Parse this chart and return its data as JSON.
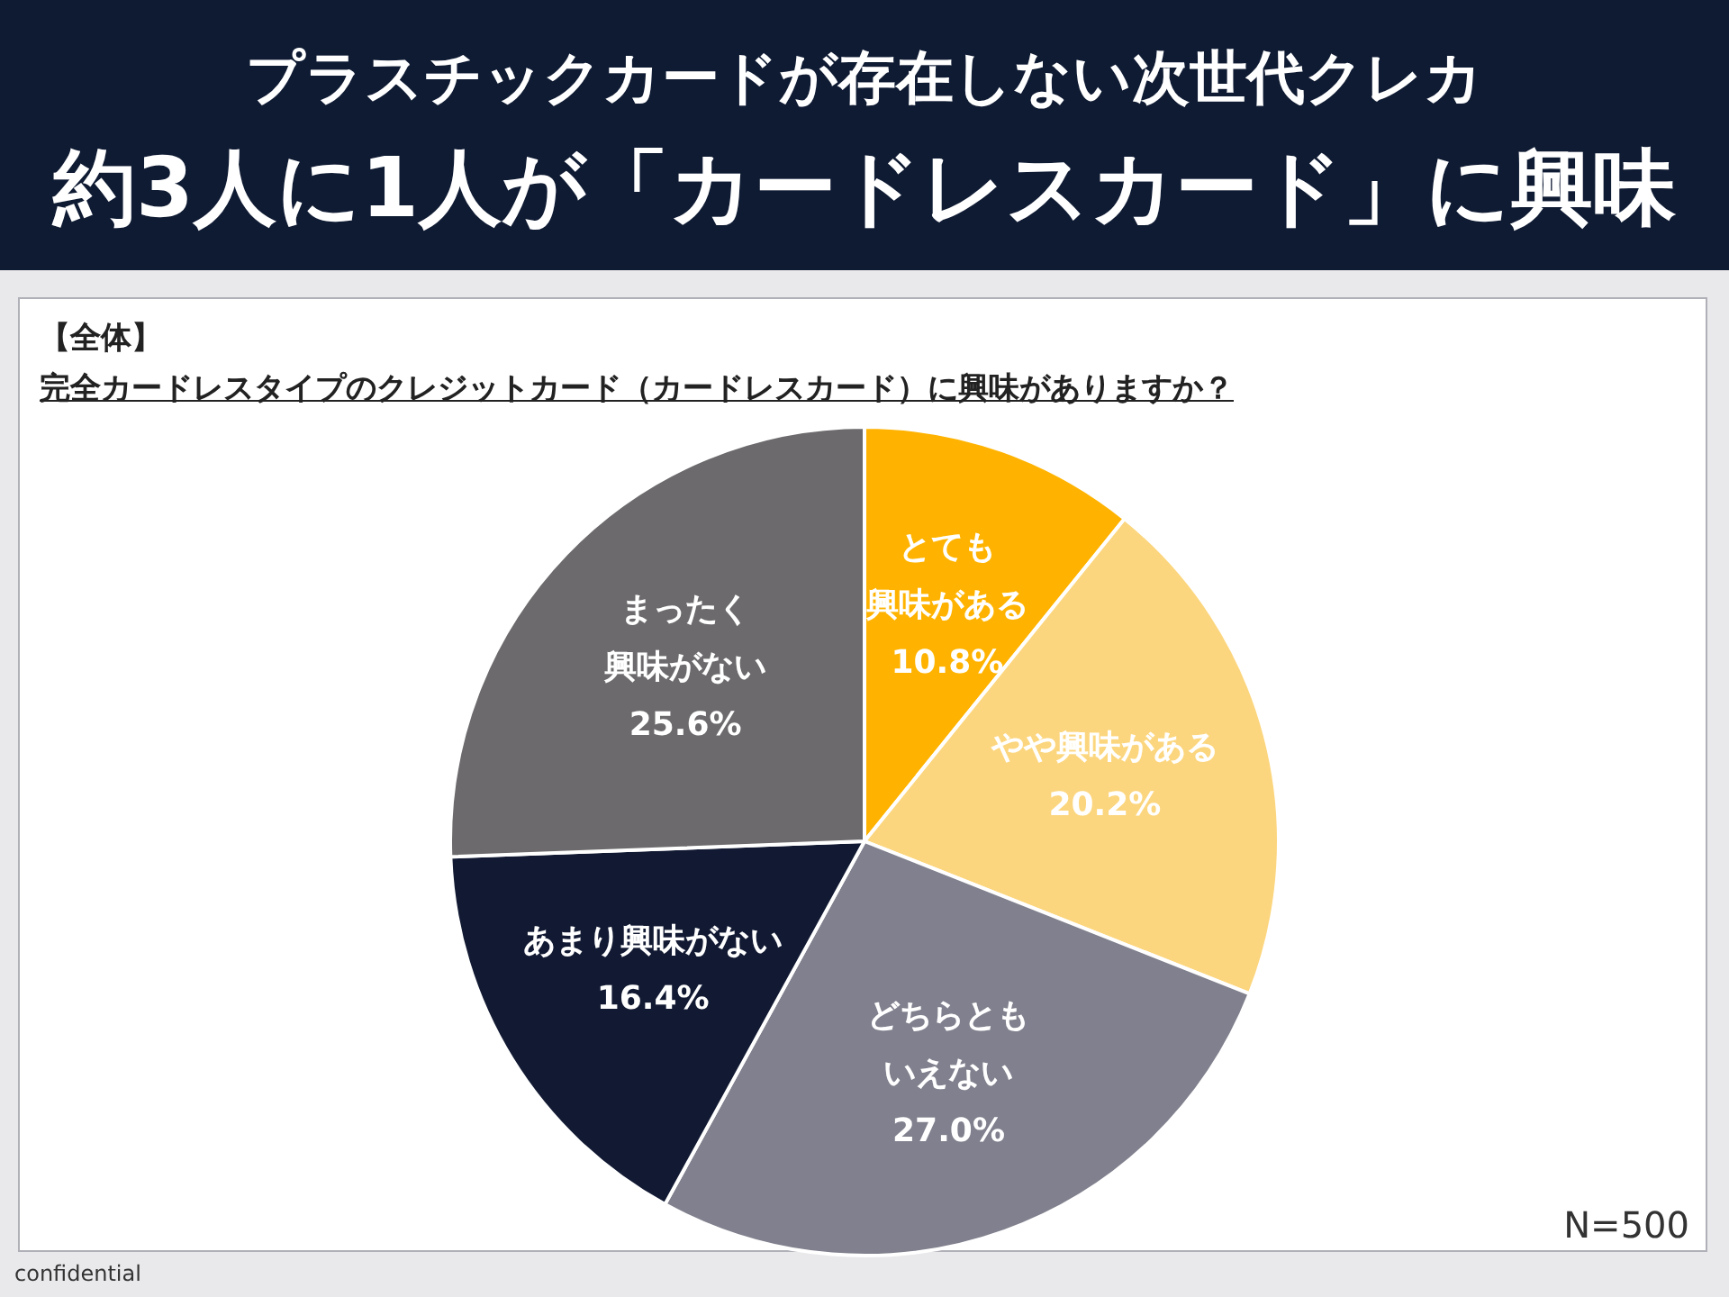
{
  "chart_data": {
    "type": "pie",
    "title": "プラスチックカードが存在しない次世代クレカ",
    "subtitle": "約3人に1人が「カードレスカード」に興味",
    "categories": [
      "とても興味がある",
      "やや興味がある",
      "どちらともいえない",
      "あまり興味がない",
      "まったく興味がない"
    ],
    "values": [
      10.8,
      20.2,
      27.0,
      16.4,
      25.6
    ],
    "colors": [
      "#ffb300",
      "#fcd67e",
      "#80808e",
      "#121a33",
      "#6c6a6c"
    ],
    "value_labels": [
      "10.8%",
      "20.2%",
      "27.0%",
      "16.4%",
      "25.6%"
    ],
    "legend": false,
    "annotations": [
      "【全体】",
      "完全カードレスタイプのクレジットカード（カードレスカード）に興味がありますか？",
      "N=500",
      "confidential"
    ]
  }
}
